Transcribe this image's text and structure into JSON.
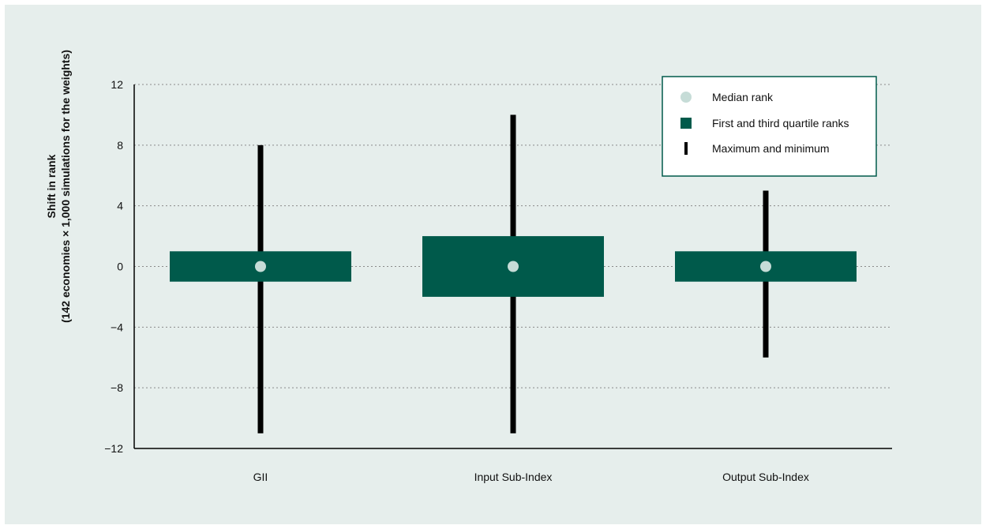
{
  "chart_data": {
    "type": "box",
    "ylabel_line1": "Shift in rank",
    "ylabel_line2": "(142 economies × 1,000 simulations for the weights)",
    "ylim": [
      -12,
      12
    ],
    "yticks": [
      12,
      8,
      4,
      0,
      -4,
      -8,
      -12
    ],
    "ytick_labels": [
      "12",
      "8",
      "4",
      "0",
      "−4",
      "−8",
      "−12"
    ],
    "grid": true,
    "legend_position": "top-right",
    "categories": [
      "GII",
      "Input Sub-Index",
      "Output Sub-Index"
    ],
    "series": [
      {
        "category": "GII",
        "min": -11,
        "q1": -1,
        "median": 0,
        "q3": 1,
        "max": 8
      },
      {
        "category": "Input Sub-Index",
        "min": -11,
        "q1": -2,
        "median": 0,
        "q3": 2,
        "max": 10
      },
      {
        "category": "Output Sub-Index",
        "min": -6,
        "q1": -1,
        "median": 0,
        "q3": 1,
        "max": 5
      }
    ],
    "legend": [
      {
        "label": "Median rank",
        "marker": "circle"
      },
      {
        "label": "First and third quartile ranks",
        "marker": "square"
      },
      {
        "label": "Maximum and minimum",
        "marker": "bar"
      }
    ],
    "colors": {
      "box": "#005a4b",
      "whisker": "#000000",
      "median": "#c6dcd7",
      "background": "#e6eeec",
      "legend_border": "#005a4b"
    }
  }
}
